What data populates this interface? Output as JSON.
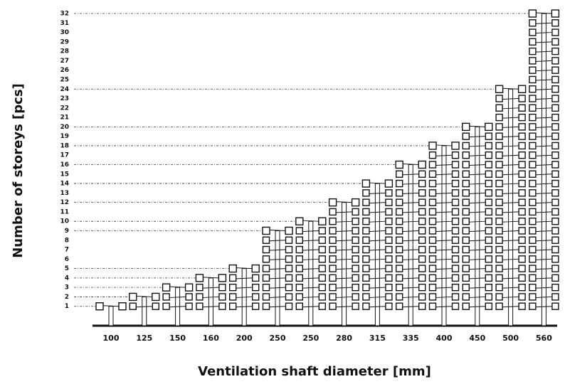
{
  "chart_data": {
    "type": "pictogram-bar",
    "x_label": "Ventilation shaft diameter [mm]",
    "y_label": "Number of storeys [pcs]",
    "categories": [
      "100",
      "125",
      "150",
      "160",
      "200",
      "250",
      "250",
      "280",
      "315",
      "335",
      "400",
      "450",
      "500",
      "560"
    ],
    "values": [
      1,
      2,
      3,
      4,
      5,
      9,
      10,
      12,
      14,
      16,
      18,
      20,
      24,
      32
    ],
    "ylim": [
      0,
      32
    ],
    "yticks": [
      1,
      2,
      3,
      4,
      5,
      6,
      7,
      8,
      9,
      10,
      11,
      12,
      13,
      14,
      15,
      16,
      17,
      18,
      19,
      20,
      21,
      22,
      23,
      24,
      25,
      26,
      27,
      28,
      29,
      30,
      31,
      32
    ],
    "color": "#111111"
  }
}
